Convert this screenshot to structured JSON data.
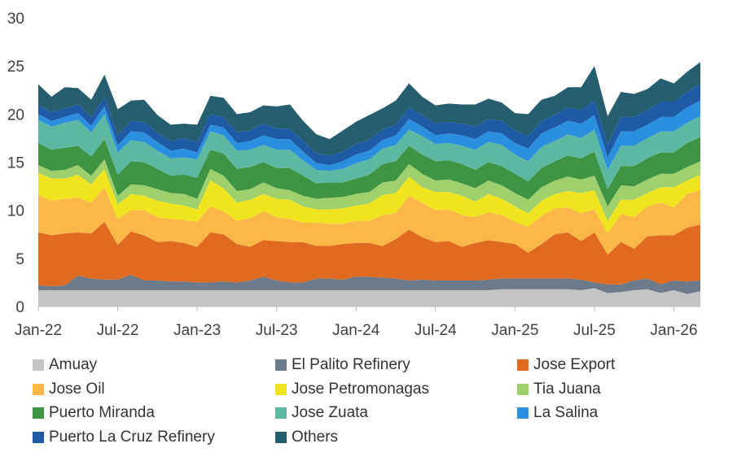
{
  "chart_data": {
    "type": "area",
    "stacked": true,
    "title": "",
    "xlabel": "",
    "ylabel": "",
    "ylim": [
      0,
      30
    ],
    "y_ticks": [
      "0",
      "5",
      "10",
      "15",
      "20",
      "25",
      "30"
    ],
    "x_ticks": [
      {
        "label": "Jan-22",
        "index": 0
      },
      {
        "label": "Jul-22",
        "index": 6
      },
      {
        "label": "Jan-23",
        "index": 12
      },
      {
        "label": "Jul-23",
        "index": 18
      },
      {
        "label": "Jan-24",
        "index": 24
      },
      {
        "label": "Jul-24",
        "index": 30
      },
      {
        "label": "Jan-25",
        "index": 36
      },
      {
        "label": "Jul-25",
        "index": 42
      },
      {
        "label": "Jan-26",
        "index": 48
      }
    ],
    "x": [
      "Jan-22",
      "Feb-22",
      "Mar-22",
      "Apr-22",
      "May-22",
      "Jun-22",
      "Jul-22",
      "Aug-22",
      "Sep-22",
      "Oct-22",
      "Nov-22",
      "Dec-22",
      "Jan-23",
      "Feb-23",
      "Mar-23",
      "Apr-23",
      "May-23",
      "Jun-23",
      "Jul-23",
      "Aug-23",
      "Sep-23",
      "Oct-23",
      "Nov-23",
      "Dec-23",
      "Jan-24",
      "Feb-24",
      "Mar-24",
      "Apr-24",
      "May-24",
      "Jun-24",
      "Jul-24",
      "Aug-24",
      "Sep-24",
      "Oct-24",
      "Nov-24",
      "Dec-24",
      "Jan-25",
      "Feb-25",
      "Mar-25",
      "Apr-25",
      "May-25",
      "Jun-25",
      "Jul-25",
      "Aug-25",
      "Sep-25",
      "Oct-25",
      "Nov-25",
      "Dec-25",
      "Jan-26",
      "Feb-26",
      "Mar-26"
    ],
    "series": [
      {
        "name": "Amuay",
        "color": "#c4c4c4",
        "values": [
          1.7,
          1.7,
          1.7,
          1.7,
          1.7,
          1.7,
          1.7,
          1.7,
          1.7,
          1.7,
          1.7,
          1.7,
          1.7,
          1.7,
          1.7,
          1.7,
          1.7,
          1.7,
          1.7,
          1.7,
          1.7,
          1.7,
          1.7,
          1.7,
          1.7,
          1.7,
          1.7,
          1.7,
          1.7,
          1.7,
          1.7,
          1.7,
          1.7,
          1.7,
          1.7,
          1.8,
          1.8,
          1.8,
          1.8,
          1.8,
          1.8,
          1.7,
          1.9,
          1.4,
          1.5,
          1.7,
          1.8,
          1.4,
          1.7,
          1.3,
          1.6
        ]
      },
      {
        "name": "El Palito Refinery",
        "color": "#6c7a89",
        "values": [
          0.5,
          0.4,
          0.5,
          1.5,
          1.2,
          1.1,
          1.1,
          1.6,
          1.0,
          1.0,
          0.9,
          0.9,
          0.8,
          0.8,
          0.9,
          0.8,
          1.0,
          1.4,
          1.0,
          0.8,
          0.8,
          1.2,
          1.2,
          1.1,
          1.4,
          1.4,
          1.3,
          1.2,
          1.0,
          1.1,
          1.0,
          1.0,
          1.0,
          1.0,
          1.1,
          1.1,
          1.1,
          1.1,
          1.1,
          1.1,
          1.1,
          1.1,
          0.6,
          0.9,
          0.8,
          1.0,
          1.1,
          0.9,
          1.0,
          1.3,
          1.1
        ]
      },
      {
        "name": "Jose Export",
        "color": "#e06a20",
        "values": [
          5.5,
          5.3,
          5.4,
          4.5,
          4.7,
          6.0,
          3.6,
          4.5,
          4.7,
          4.0,
          4.2,
          4.0,
          3.7,
          5.2,
          4.9,
          4.0,
          3.5,
          3.8,
          4.1,
          4.2,
          4.2,
          3.4,
          3.4,
          3.7,
          3.5,
          3.5,
          3.3,
          4.1,
          5.3,
          4.4,
          4.0,
          4.1,
          3.5,
          3.9,
          4.1,
          3.8,
          3.6,
          2.7,
          3.6,
          4.6,
          4.8,
          4.0,
          5.2,
          3.1,
          4.4,
          3.3,
          4.4,
          5.1,
          4.7,
          5.6,
          5.8
        ]
      },
      {
        "name": "Jose Oil",
        "color": "#fbb848",
        "values": [
          3.9,
          3.6,
          3.6,
          3.6,
          3.2,
          3.6,
          2.7,
          2.2,
          2.6,
          2.6,
          2.3,
          2.4,
          2.6,
          2.7,
          2.4,
          2.4,
          3.0,
          3.0,
          2.5,
          2.4,
          2.0,
          2.4,
          2.3,
          2.1,
          2.3,
          2.3,
          3.2,
          2.7,
          3.5,
          3.6,
          3.3,
          3.3,
          3.3,
          2.7,
          2.9,
          2.8,
          2.3,
          2.7,
          2.9,
          2.7,
          2.6,
          2.9,
          2.4,
          2.2,
          2.9,
          3.3,
          3.1,
          3.4,
          2.9,
          3.5,
          3.6
        ]
      },
      {
        "name": "Jose Petromonagas",
        "color": "#f0e41e",
        "values": [
          2.3,
          2.3,
          2.1,
          2.4,
          1.9,
          1.9,
          1.5,
          1.7,
          1.5,
          1.7,
          1.6,
          1.5,
          1.3,
          2.7,
          2.4,
          1.9,
          1.9,
          1.8,
          1.9,
          2.0,
          1.7,
          1.4,
          1.5,
          1.6,
          1.6,
          1.8,
          2.1,
          2.1,
          2.0,
          1.6,
          1.9,
          1.8,
          2.0,
          1.6,
          1.9,
          1.7,
          1.6,
          1.4,
          1.6,
          1.5,
          1.7,
          2.1,
          2.0,
          1.3,
          1.5,
          1.8,
          1.4,
          1.6,
          2.1,
          1.4,
          1.6
        ]
      },
      {
        "name": "Tia Juana",
        "color": "#9fd06e",
        "values": [
          0.8,
          0.8,
          0.9,
          1.0,
          0.9,
          1.0,
          0.9,
          1.0,
          1.1,
          1.2,
          1.1,
          1.2,
          1.1,
          1.2,
          1.3,
          1.2,
          1.1,
          1.2,
          1.1,
          1.0,
          1.1,
          1.1,
          1.2,
          1.2,
          1.2,
          1.2,
          1.3,
          1.3,
          1.3,
          1.4,
          1.2,
          1.3,
          1.3,
          1.4,
          1.4,
          1.4,
          1.4,
          1.4,
          1.4,
          1.4,
          1.5,
          1.4,
          1.5,
          1.5,
          1.5,
          1.4,
          1.4,
          1.4,
          1.4,
          1.4,
          1.4
        ]
      },
      {
        "name": "Puerto Miranda",
        "color": "#3e9443",
        "values": [
          2.3,
          2.2,
          2.3,
          2.0,
          2.0,
          2.1,
          2.2,
          2.4,
          2.4,
          2.1,
          1.8,
          2.0,
          2.2,
          2.0,
          2.3,
          2.3,
          2.3,
          2.1,
          2.1,
          2.3,
          2.1,
          1.6,
          1.6,
          1.5,
          1.6,
          1.8,
          1.9,
          2.0,
          1.9,
          2.0,
          2.0,
          2.0,
          2.0,
          1.9,
          1.9,
          2.0,
          2.0,
          1.9,
          2.0,
          2.0,
          2.2,
          2.2,
          2.5,
          1.8,
          2.0,
          2.1,
          2.2,
          2.2,
          2.2,
          2.5,
          2.5
        ]
      },
      {
        "name": "Jose Zuata",
        "color": "#5cb8a0",
        "values": [
          2.4,
          2.4,
          2.6,
          2.7,
          2.5,
          2.6,
          2.3,
          2.2,
          2.1,
          1.9,
          1.8,
          1.8,
          1.9,
          1.9,
          1.9,
          1.9,
          1.8,
          1.8,
          1.9,
          1.9,
          1.6,
          1.4,
          1.2,
          1.4,
          1.6,
          1.6,
          1.6,
          1.7,
          1.7,
          1.9,
          1.8,
          1.8,
          1.9,
          2.1,
          2.1,
          2.2,
          2.0,
          2.1,
          2.2,
          2.1,
          2.2,
          2.1,
          2.3,
          2.0,
          2.1,
          2.1,
          2.1,
          2.2,
          2.2,
          2.1,
          2.2
        ]
      },
      {
        "name": "La Salina",
        "color": "#2b8fe0",
        "values": [
          0.6,
          0.6,
          0.6,
          0.7,
          0.7,
          0.8,
          0.8,
          0.9,
          1.0,
          0.9,
          0.8,
          0.9,
          0.7,
          0.7,
          0.8,
          0.8,
          0.9,
          1.0,
          1.1,
          1.1,
          0.9,
          0.7,
          0.6,
          0.8,
          0.9,
          0.9,
          0.9,
          1.0,
          1.1,
          1.0,
          0.9,
          1.0,
          1.1,
          1.1,
          1.1,
          1.2,
          1.2,
          1.3,
          1.4,
          1.4,
          1.4,
          1.5,
          1.5,
          1.3,
          1.5,
          1.5,
          1.4,
          1.5,
          1.5,
          1.6,
          1.6
        ]
      },
      {
        "name": "Puerto La Cruz Refinery",
        "color": "#1f5aa6",
        "values": [
          0.9,
          0.9,
          0.9,
          0.9,
          0.9,
          1.0,
          1.0,
          1.1,
          1.1,
          1.0,
          1.0,
          1.1,
          1.1,
          1.1,
          1.1,
          1.1,
          1.1,
          1.2,
          1.1,
          1.1,
          1.1,
          1.0,
          1.0,
          1.0,
          1.1,
          1.1,
          1.1,
          1.1,
          1.2,
          1.2,
          1.2,
          1.2,
          1.2,
          1.3,
          1.3,
          1.3,
          1.3,
          1.3,
          1.3,
          1.3,
          1.4,
          1.4,
          1.5,
          1.4,
          1.5,
          1.5,
          1.5,
          1.6,
          1.6,
          1.6,
          1.7
        ]
      },
      {
        "name": "Others",
        "color": "#255e6e",
        "values": [
          2.2,
          1.6,
          2.2,
          1.7,
          1.8,
          2.3,
          2.7,
          2.1,
          2.3,
          1.8,
          1.7,
          1.5,
          1.8,
          1.9,
          2.0,
          1.9,
          1.9,
          1.9,
          2.3,
          2.5,
          2.1,
          2.0,
          1.7,
          2.2,
          2.3,
          2.6,
          2.2,
          2.5,
          2.5,
          1.9,
          1.9,
          1.9,
          2.0,
          2.3,
          2.1,
          1.9,
          1.8,
          2.3,
          2.2,
          2.0,
          2.1,
          2.4,
          3.6,
          2.9,
          2.6,
          2.4,
          2.2,
          2.4,
          1.9,
          2.1,
          2.3
        ]
      }
    ],
    "legend_position": "bottom"
  }
}
